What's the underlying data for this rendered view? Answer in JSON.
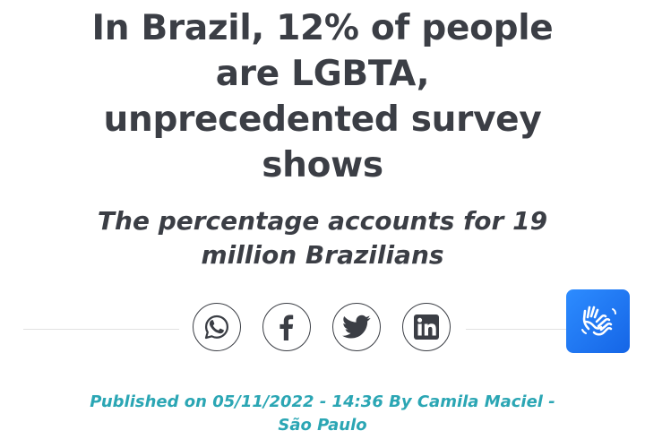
{
  "article": {
    "headline": "In Brazil, 12% of people are LGBTA, unprecedented survey shows",
    "subheadline": "The percentage accounts for 19 million Brazilians",
    "byline": "Published on 05/11/2022 - 14:36 By Camila Maciel - São Paulo"
  },
  "share": {
    "buttons": [
      {
        "name": "whatsapp",
        "icon": "whatsapp-icon"
      },
      {
        "name": "facebook",
        "icon": "facebook-icon"
      },
      {
        "name": "twitter",
        "icon": "twitter-icon"
      },
      {
        "name": "linkedin",
        "icon": "linkedin-icon"
      }
    ],
    "icon_color": "#3b3e45"
  },
  "accessibility_widget": {
    "icon": "sign-language-hands-icon",
    "color": "#1a73e8"
  },
  "colors": {
    "headline": "#3b3e45",
    "byline": "#2ba6b4"
  }
}
